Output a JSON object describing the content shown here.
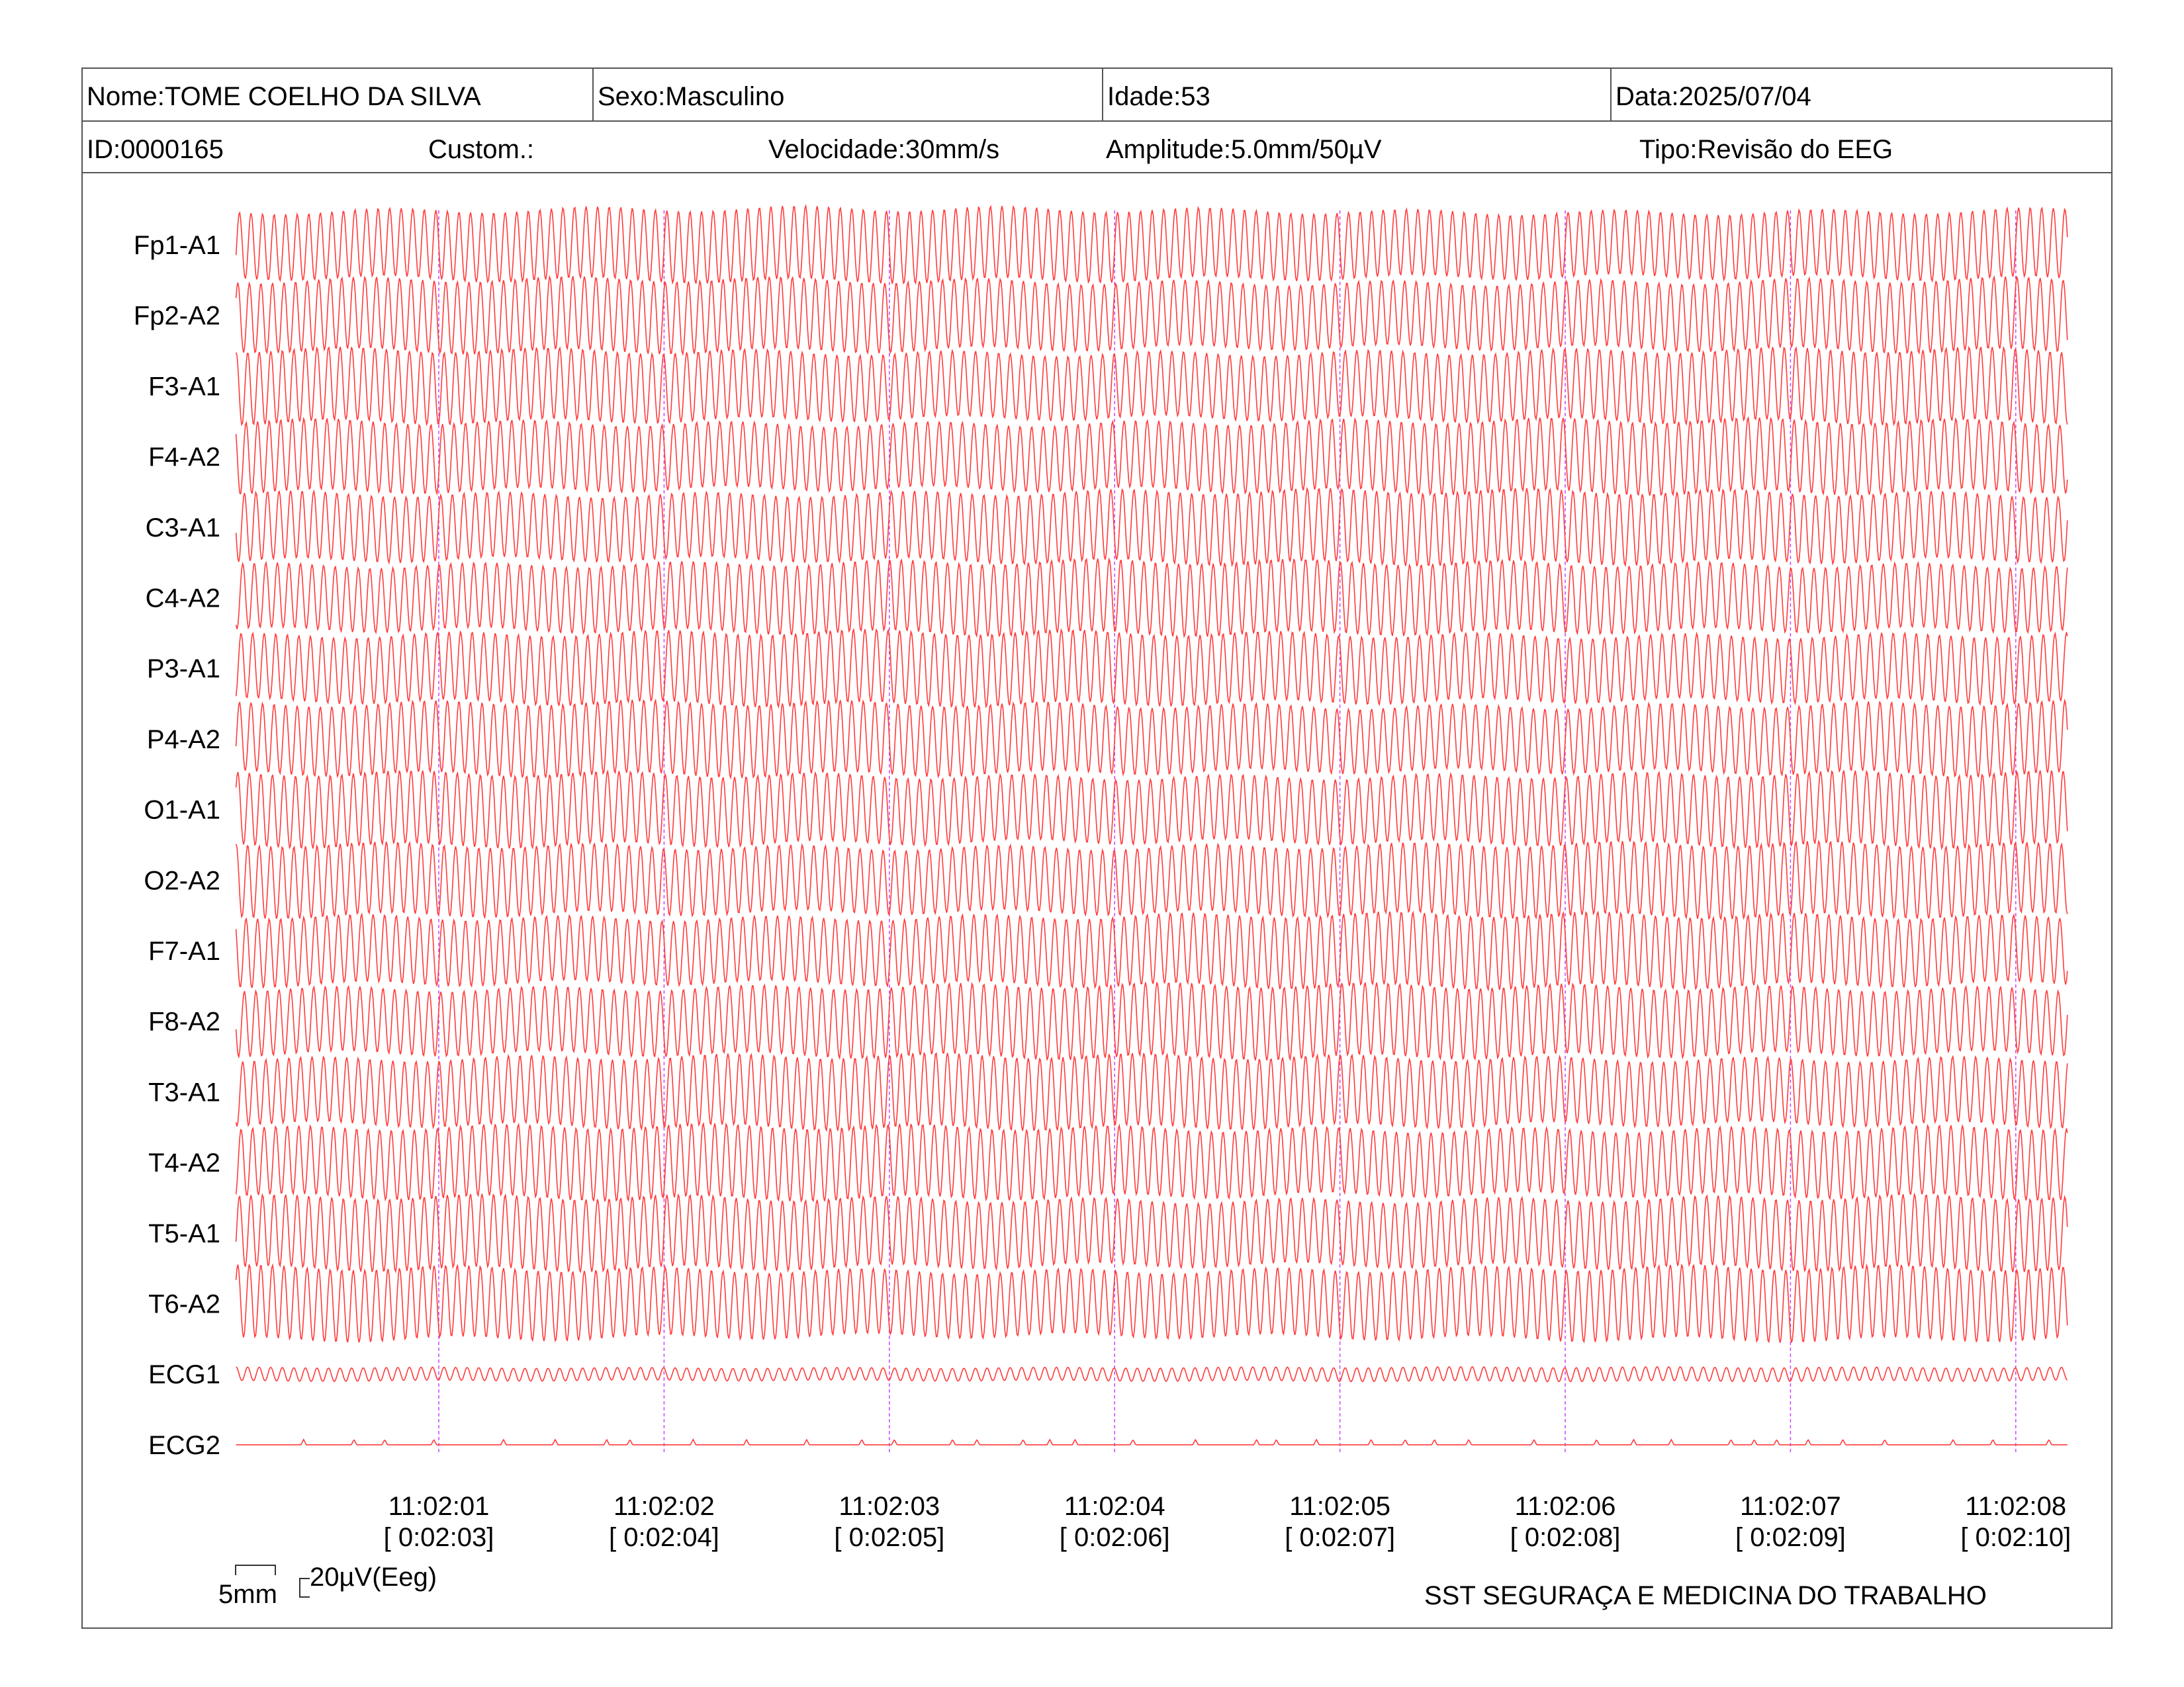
{
  "header": {
    "nome": "Nome:TOME COELHO DA SILVA",
    "sexo": "Sexo:Masculino",
    "idade": "Idade:53",
    "data": "Data:2025/07/04",
    "id": "ID:0000165",
    "custom": "Custom.:",
    "velocidade": "Velocidade:30mm/s",
    "amplitude": "Amplitude:5.0mm/50µV",
    "tipo": "Tipo:Revisão do EEG"
  },
  "chart_data": {
    "type": "line",
    "title": "",
    "xlabel": "",
    "ylabel": "",
    "trace_color": "#ff3b3b",
    "marker_color": "#cc44ff",
    "x_start_seconds_before_first_tick": 0.9,
    "x_end_seconds_after_last_tick": 0.23,
    "time_ticks": [
      {
        "clock": "11:02:01",
        "elapsed": "[ 0:02:03]"
      },
      {
        "clock": "11:02:02",
        "elapsed": "[ 0:02:04]"
      },
      {
        "clock": "11:02:03",
        "elapsed": "[ 0:02:05]"
      },
      {
        "clock": "11:02:04",
        "elapsed": "[ 0:02:06]"
      },
      {
        "clock": "11:02:05",
        "elapsed": "[ 0:02:07]"
      },
      {
        "clock": "11:02:06",
        "elapsed": "[ 0:02:08]"
      },
      {
        "clock": "11:02:07",
        "elapsed": "[ 0:02:09]"
      },
      {
        "clock": "11:02:08",
        "elapsed": "[ 0:02:10]"
      }
    ],
    "series": [
      {
        "name": "Fp1-A1",
        "kind": "eeg",
        "freq_hz": 19.5,
        "amplitude": 1.0
      },
      {
        "name": "Fp2-A2",
        "kind": "eeg",
        "freq_hz": 19.5,
        "amplitude": 1.0
      },
      {
        "name": "F3-A1",
        "kind": "eeg",
        "freq_hz": 19.5,
        "amplitude": 1.0
      },
      {
        "name": "F4-A2",
        "kind": "eeg",
        "freq_hz": 19.5,
        "amplitude": 1.0
      },
      {
        "name": "C3-A1",
        "kind": "eeg",
        "freq_hz": 19.5,
        "amplitude": 1.0
      },
      {
        "name": "C4-A2",
        "kind": "eeg",
        "freq_hz": 19.5,
        "amplitude": 1.0
      },
      {
        "name": "P3-A1",
        "kind": "eeg",
        "freq_hz": 19.5,
        "amplitude": 1.0
      },
      {
        "name": "P4-A2",
        "kind": "eeg",
        "freq_hz": 19.5,
        "amplitude": 1.0
      },
      {
        "name": "O1-A1",
        "kind": "eeg",
        "freq_hz": 19.5,
        "amplitude": 1.0
      },
      {
        "name": "O2-A2",
        "kind": "eeg",
        "freq_hz": 19.5,
        "amplitude": 1.0
      },
      {
        "name": "F7-A1",
        "kind": "eeg",
        "freq_hz": 19.5,
        "amplitude": 1.0
      },
      {
        "name": "F8-A2",
        "kind": "eeg",
        "freq_hz": 19.5,
        "amplitude": 1.0
      },
      {
        "name": "T3-A1",
        "kind": "eeg",
        "freq_hz": 19.5,
        "amplitude": 1.0
      },
      {
        "name": "T4-A2",
        "kind": "eeg",
        "freq_hz": 19.5,
        "amplitude": 1.0
      },
      {
        "name": "T5-A1",
        "kind": "eeg",
        "freq_hz": 19.5,
        "amplitude": 1.0
      },
      {
        "name": "T6-A2",
        "kind": "eeg",
        "freq_hz": 19.5,
        "amplitude": 1.0
      },
      {
        "name": "ECG1",
        "kind": "ecg1",
        "freq_hz": 19.5,
        "amplitude": 0.12
      },
      {
        "name": "ECG2",
        "kind": "ecg2",
        "freq_hz": 0,
        "amplitude": 0.02
      }
    ]
  },
  "scale": {
    "time_label": "5mm",
    "amp_label": "20µV(Eeg)"
  },
  "footer": {
    "company": "SST SEGURAÇA E MEDICINA DO TRABALHO"
  }
}
